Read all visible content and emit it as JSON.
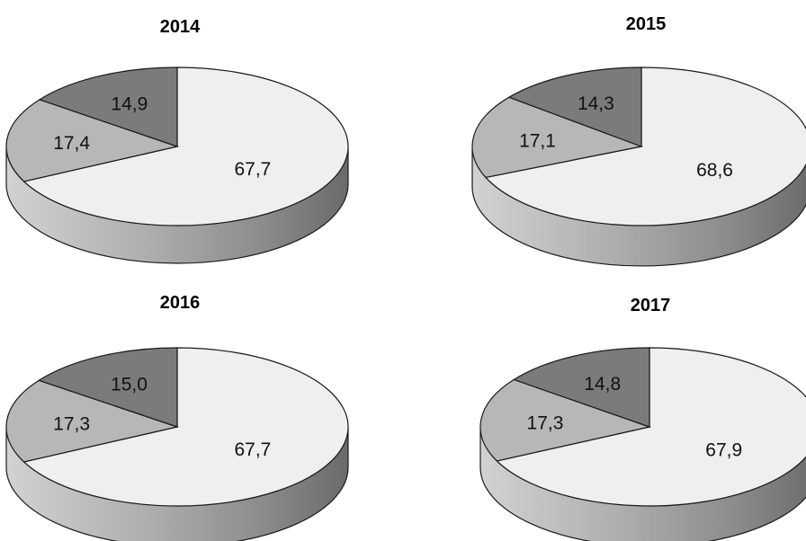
{
  "chart_data": [
    {
      "type": "pie",
      "title": "2014",
      "slices": [
        {
          "value": 67.7,
          "label": "67,7",
          "color": "#efefef"
        },
        {
          "value": 17.4,
          "label": "17,4",
          "color": "#b7b7b7"
        },
        {
          "value": 14.9,
          "label": "14,9",
          "color": "#7b7b7b"
        }
      ]
    },
    {
      "type": "pie",
      "title": "2015",
      "slices": [
        {
          "value": 68.6,
          "label": "68,6",
          "color": "#efefef"
        },
        {
          "value": 17.1,
          "label": "17,1",
          "color": "#b7b7b7"
        },
        {
          "value": 14.3,
          "label": "14,3",
          "color": "#7b7b7b"
        }
      ]
    },
    {
      "type": "pie",
      "title": "2016",
      "slices": [
        {
          "value": 67.7,
          "label": "67,7",
          "color": "#efefef"
        },
        {
          "value": 17.3,
          "label": "17,3",
          "color": "#b7b7b7"
        },
        {
          "value": 15.0,
          "label": "15,0",
          "color": "#7b7b7b"
        }
      ]
    },
    {
      "type": "pie",
      "title": "2017",
      "slices": [
        {
          "value": 67.9,
          "label": "67,9",
          "color": "#efefef"
        },
        {
          "value": 17.3,
          "label": "17,3",
          "color": "#b7b7b7"
        },
        {
          "value": 14.8,
          "label": "14,8",
          "color": "#7b7b7b"
        }
      ]
    }
  ]
}
